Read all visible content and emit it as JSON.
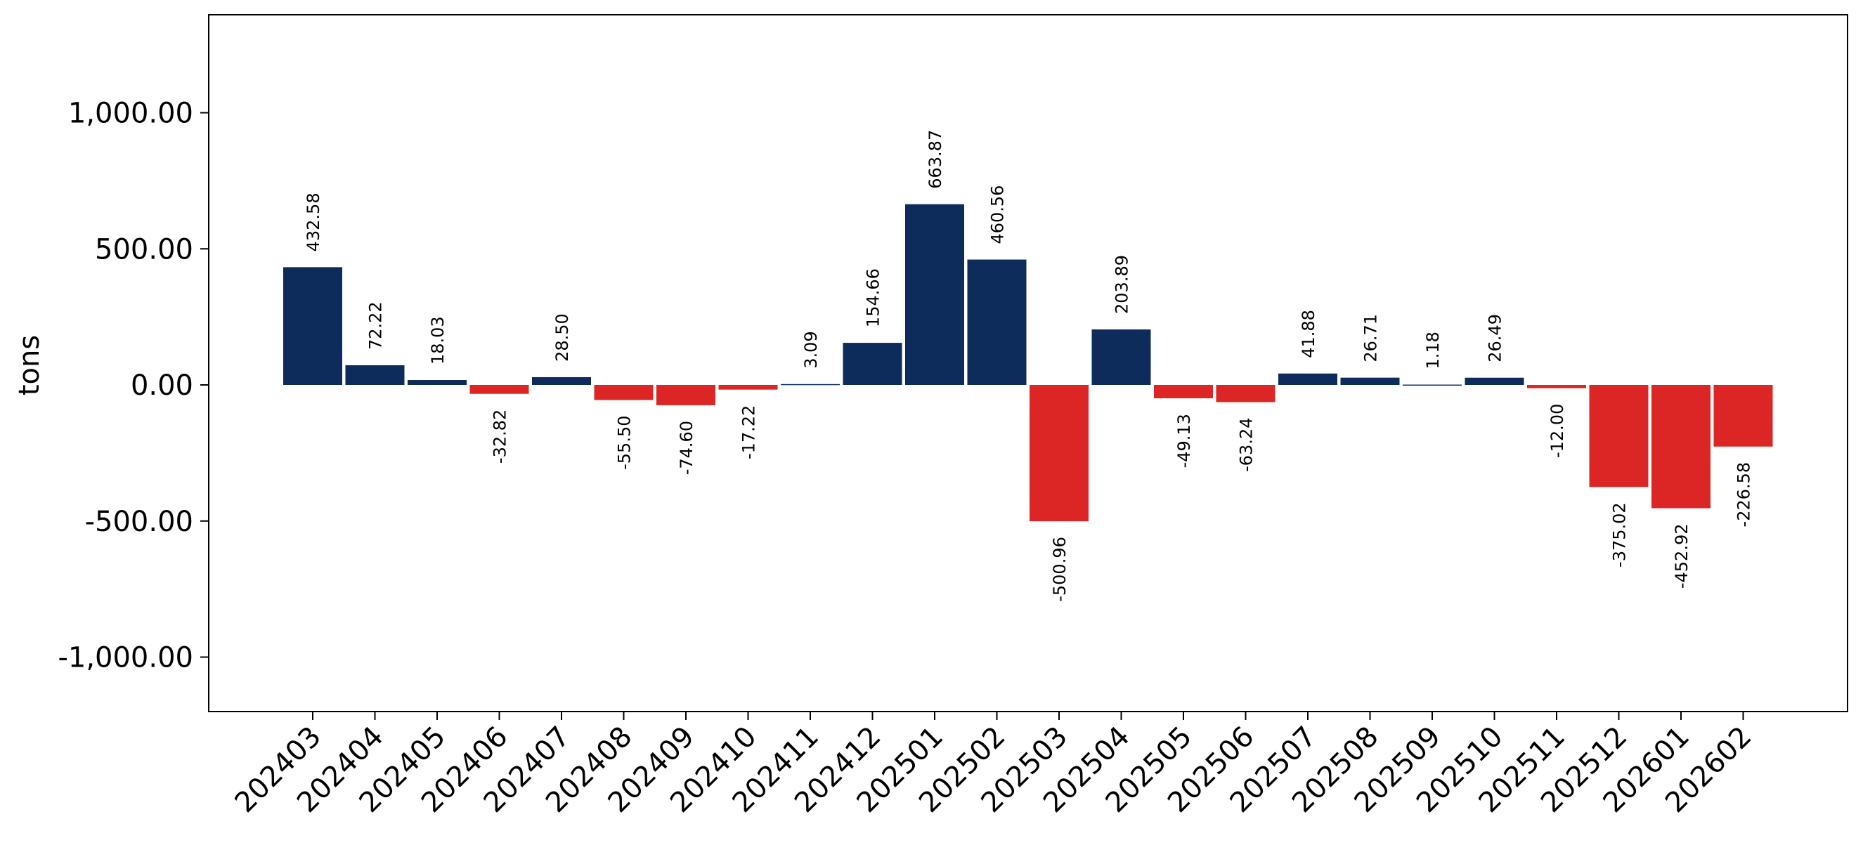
{
  "chart_data": {
    "type": "bar",
    "title": "",
    "xlabel": "",
    "ylabel": "tons",
    "ylim": [
      -1200,
      1360
    ],
    "yticks": [
      -1000,
      -500,
      0,
      500,
      1000
    ],
    "ytick_labels": [
      "-1,000.00",
      "-500.00",
      "0.00",
      "500.00",
      "1,000.00"
    ],
    "grid": false,
    "legend": "none",
    "colors": {
      "positive": "#0d2c5c",
      "negative": "#dc2626"
    },
    "categories": [
      "202403",
      "202404",
      "202405",
      "202406",
      "202407",
      "202408",
      "202409",
      "202410",
      "202411",
      "202412",
      "202501",
      "202502",
      "202503",
      "202504",
      "202505",
      "202506",
      "202507",
      "202508",
      "202509",
      "202510",
      "202511",
      "202512",
      "202601",
      "202602"
    ],
    "values": [
      432.58,
      72.22,
      18.03,
      -32.82,
      28.5,
      -55.5,
      -74.6,
      -17.22,
      3.09,
      154.66,
      663.87,
      460.56,
      -500.96,
      203.89,
      -49.13,
      -63.24,
      41.88,
      26.71,
      1.18,
      26.49,
      -12.0,
      -375.02,
      -452.92,
      -226.58
    ],
    "data_labels": [
      "432.58",
      "72.22",
      "18.03",
      "-32.82",
      "28.50",
      "-55.50",
      "-74.60",
      "-17.22",
      "3.09",
      "154.66",
      "663.87",
      "460.56",
      "-500.96",
      "203.89",
      "-49.13",
      "-63.24",
      "41.88",
      "26.71",
      "1.18",
      "26.49",
      "-12.00",
      "-375.02",
      "-452.92",
      "-226.58"
    ]
  }
}
